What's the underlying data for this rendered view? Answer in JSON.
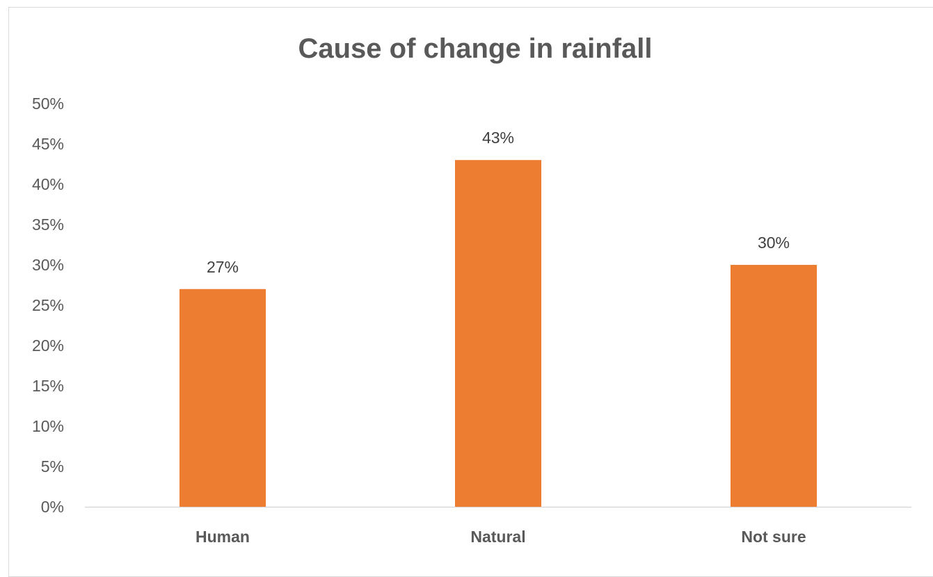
{
  "chart_data": {
    "type": "bar",
    "title": "Cause of change in rainfall",
    "categories": [
      "Human",
      "Natural",
      "Not sure"
    ],
    "values": [
      27,
      43,
      30
    ],
    "data_labels": [
      "27%",
      "43%",
      "30%"
    ],
    "ylim": [
      0,
      50
    ],
    "y_ticks": [
      0,
      5,
      10,
      15,
      20,
      25,
      30,
      35,
      40,
      45,
      50
    ],
    "y_tick_labels": [
      "0%",
      "5%",
      "10%",
      "15%",
      "20%",
      "25%",
      "30%",
      "35%",
      "40%",
      "45%",
      "50%"
    ],
    "grid": false,
    "legend": "none",
    "bar_color": "#ed7d31",
    "axis_color": "#d9d9d9"
  }
}
